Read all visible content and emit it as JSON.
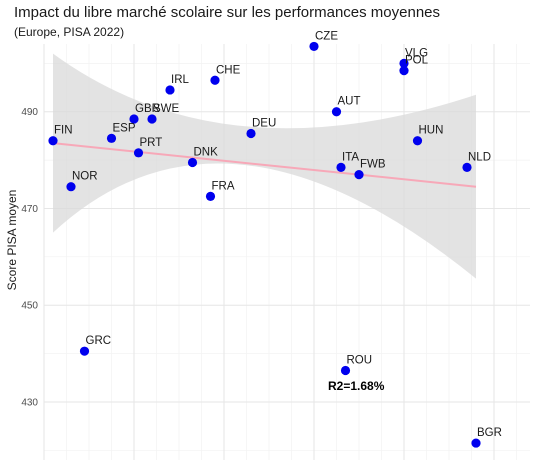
{
  "chart_data": {
    "type": "scatter",
    "title": "Impact du libre marché scolaire sur les performances moyennes",
    "subtitle": "(Europe, PISA 2022)",
    "xlabel": "",
    "ylabel": "Score PISA moyen",
    "ylim": [
      418,
      504
    ],
    "yticks": [
      430,
      450,
      470,
      490
    ],
    "xlim": [
      0,
      10.8
    ],
    "grid": true,
    "annotation": "R2=1.68%",
    "colors": {
      "point": "#0000ee",
      "trend": "#f7a8b8",
      "band": "#d9d9d9"
    },
    "points": [
      {
        "label": "FIN",
        "x": 0.2,
        "y": 484
      },
      {
        "label": "NOR",
        "x": 0.6,
        "y": 474.5
      },
      {
        "label": "GRC",
        "x": 0.9,
        "y": 440.5
      },
      {
        "label": "ESP",
        "x": 1.5,
        "y": 484.5
      },
      {
        "label": "GBR",
        "x": 2.0,
        "y": 488.5
      },
      {
        "label": "PRT",
        "x": 2.1,
        "y": 481.5
      },
      {
        "label": "SWE",
        "x": 2.4,
        "y": 488.5
      },
      {
        "label": "IRL",
        "x": 2.8,
        "y": 494.5
      },
      {
        "label": "DNK",
        "x": 3.3,
        "y": 479.5
      },
      {
        "label": "FRA",
        "x": 3.7,
        "y": 472.5
      },
      {
        "label": "CHE",
        "x": 3.8,
        "y": 496.5
      },
      {
        "label": "DEU",
        "x": 4.6,
        "y": 485.5
      },
      {
        "label": "CZE",
        "x": 6.0,
        "y": 503.5
      },
      {
        "label": "AUT",
        "x": 6.5,
        "y": 490
      },
      {
        "label": "ITA",
        "x": 6.6,
        "y": 478.5
      },
      {
        "label": "ROU",
        "x": 6.7,
        "y": 436.5
      },
      {
        "label": "FWB",
        "x": 7.0,
        "y": 477
      },
      {
        "label": "VLG",
        "x": 8.0,
        "y": 500
      },
      {
        "label": "POL",
        "x": 8.0,
        "y": 498.5
      },
      {
        "label": "HUN",
        "x": 8.3,
        "y": 484
      },
      {
        "label": "NLD",
        "x": 9.4,
        "y": 478.5
      },
      {
        "label": "BGR",
        "x": 9.6,
        "y": 421.5
      }
    ],
    "trend": {
      "x": [
        0.2,
        9.6
      ],
      "y": [
        483.5,
        474.5
      ]
    },
    "band": {
      "x": [
        0.2,
        4.0,
        9.6
      ],
      "lower": [
        465,
        479,
        455.5
      ],
      "upper": [
        502,
        487,
        493.5
      ]
    }
  }
}
